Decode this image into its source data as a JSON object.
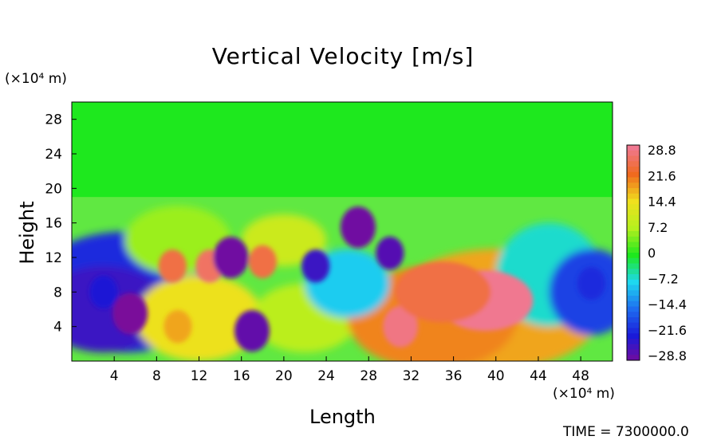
{
  "chart_data": {
    "type": "heatmap",
    "title": "Vertical Velocity [m/s]",
    "xlabel": "Length",
    "ylabel": "Height",
    "x_unit": "(×10⁴ m)",
    "y_unit": "(×10⁴ m)",
    "xlim": [
      0,
      51
    ],
    "ylim": [
      0,
      30
    ],
    "x_ticks": [
      "4",
      "8",
      "12",
      "16",
      "20",
      "24",
      "28",
      "32",
      "36",
      "40",
      "44",
      "48"
    ],
    "y_ticks": [
      "4",
      "8",
      "12",
      "16",
      "20",
      "24",
      "28"
    ],
    "colorbar_labels": [
      "28.8",
      "21.6",
      "14.4",
      "7.2",
      "0",
      "−7.2",
      "−14.4",
      "−21.6",
      "−28.8"
    ],
    "colorbar_range": [
      -28.8,
      28.8
    ],
    "footer": "TIME = 7300000.0",
    "features": [
      {
        "x": 5.5,
        "y": 5.5,
        "value": -28.8
      },
      {
        "x": 3,
        "y": 8,
        "value": -22
      },
      {
        "x": 9.5,
        "y": 11,
        "value": 24
      },
      {
        "x": 13,
        "y": 11,
        "value": 26
      },
      {
        "x": 15,
        "y": 12,
        "value": -28
      },
      {
        "x": 18,
        "y": 11.5,
        "value": 24
      },
      {
        "x": 17,
        "y": 3.5,
        "value": -27
      },
      {
        "x": 23,
        "y": 11,
        "value": -24
      },
      {
        "x": 27,
        "y": 15.5,
        "value": -28
      },
      {
        "x": 30,
        "y": 12.5,
        "value": -26
      },
      {
        "x": 10,
        "y": 4,
        "value": 18
      },
      {
        "x": 31,
        "y": 4,
        "value": 28
      },
      {
        "x": 39,
        "y": 7,
        "value": 28.8
      },
      {
        "x": 35,
        "y": 8,
        "value": 24
      },
      {
        "x": 49,
        "y": 9,
        "value": -20
      }
    ]
  }
}
